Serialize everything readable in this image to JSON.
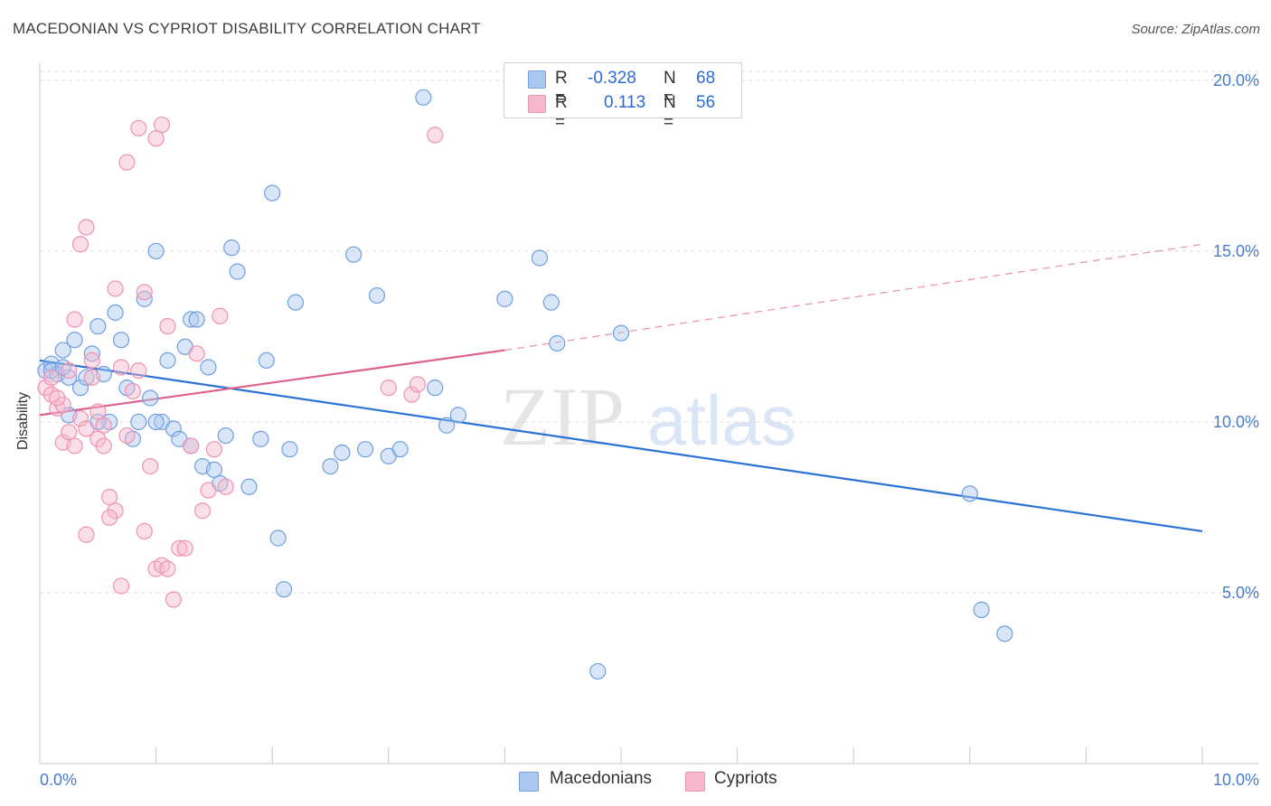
{
  "title": "MACEDONIAN VS CYPRIOT DISABILITY CORRELATION CHART",
  "source": "Source: ZipAtlas.com",
  "watermark": {
    "zip": "ZIP",
    "atlas": "atlas"
  },
  "colors": {
    "blue_fill": "#aac8f0",
    "blue_stroke": "#6f9fe0",
    "blue_line": "#2b72d6",
    "pink_fill": "#f7b8cc",
    "pink_stroke": "#ee92b0",
    "pink_line": "#e0608c",
    "grid": "#dcdcdc",
    "tick_text": "#4a7bc8"
  },
  "legend_top": {
    "rows": [
      {
        "r_label": "R =",
        "r_value": "-0.328",
        "n_label": "N =",
        "n_value": "68",
        "color": "#aac8f0"
      },
      {
        "r_label": "R =",
        "r_value": "0.113",
        "n_label": "N =",
        "n_value": "56",
        "color": "#f7b8cc"
      }
    ]
  },
  "legend_bottom": [
    {
      "label": "Macedonians",
      "color": "#aac8f0"
    },
    {
      "label": "Cypriots",
      "color": "#f7b8cc"
    }
  ],
  "chart_data": {
    "type": "scatter",
    "title": "MACEDONIAN VS CYPRIOT DISABILITY CORRELATION CHART",
    "xlabel": "",
    "ylabel": "Disability",
    "xlim": [
      0,
      10
    ],
    "ylim": [
      0,
      20.5
    ],
    "x_tick_labels": [
      "0.0%",
      "10.0%"
    ],
    "y_ticks": [
      5,
      10,
      15,
      20
    ],
    "y_tick_labels": [
      "5.0%",
      "10.0%",
      "15.0%",
      "20.0%"
    ],
    "grid": "horizontal dashed",
    "legend_position": "top-center and bottom",
    "series": [
      {
        "name": "Macedonians",
        "color": "#aac8f0",
        "r": -0.328,
        "n": 68,
        "trend": {
          "x": [
            0,
            10
          ],
          "y": [
            11.8,
            6.8
          ],
          "style": "solid"
        },
        "points": [
          [
            0.05,
            11.5
          ],
          [
            0.1,
            11.7
          ],
          [
            0.15,
            11.4
          ],
          [
            0.2,
            12.1
          ],
          [
            0.25,
            11.3
          ],
          [
            0.3,
            12.4
          ],
          [
            0.35,
            11.0
          ],
          [
            0.4,
            11.3
          ],
          [
            0.45,
            12.0
          ],
          [
            0.5,
            12.8
          ],
          [
            0.55,
            11.4
          ],
          [
            0.6,
            10.0
          ],
          [
            0.65,
            13.2
          ],
          [
            0.7,
            12.4
          ],
          [
            0.75,
            11.0
          ],
          [
            0.8,
            9.5
          ],
          [
            0.85,
            10.0
          ],
          [
            0.9,
            13.6
          ],
          [
            0.95,
            10.7
          ],
          [
            1.0,
            15.0
          ],
          [
            1.05,
            10.0
          ],
          [
            1.1,
            11.8
          ],
          [
            1.15,
            9.8
          ],
          [
            1.2,
            9.5
          ],
          [
            1.25,
            12.2
          ],
          [
            1.3,
            13.0
          ],
          [
            1.35,
            13.0
          ],
          [
            1.4,
            8.7
          ],
          [
            1.45,
            11.6
          ],
          [
            1.5,
            8.6
          ],
          [
            1.55,
            8.2
          ],
          [
            1.6,
            9.6
          ],
          [
            1.65,
            15.1
          ],
          [
            1.7,
            14.4
          ],
          [
            1.8,
            8.1
          ],
          [
            1.9,
            9.5
          ],
          [
            1.95,
            11.8
          ],
          [
            2.0,
            16.7
          ],
          [
            2.05,
            6.6
          ],
          [
            2.1,
            5.1
          ],
          [
            2.15,
            9.2
          ],
          [
            2.2,
            13.5
          ],
          [
            2.5,
            8.7
          ],
          [
            2.6,
            9.1
          ],
          [
            2.7,
            14.9
          ],
          [
            2.8,
            9.2
          ],
          [
            2.9,
            13.7
          ],
          [
            3.0,
            9.0
          ],
          [
            3.1,
            9.2
          ],
          [
            3.3,
            19.5
          ],
          [
            3.4,
            11.0
          ],
          [
            3.5,
            9.9
          ],
          [
            3.6,
            10.2
          ],
          [
            4.0,
            13.6
          ],
          [
            4.3,
            14.8
          ],
          [
            4.4,
            13.5
          ],
          [
            4.45,
            12.3
          ],
          [
            4.8,
            2.7
          ],
          [
            5.0,
            12.6
          ],
          [
            8.0,
            7.9
          ],
          [
            8.1,
            4.5
          ],
          [
            8.3,
            3.8
          ],
          [
            0.1,
            11.5
          ],
          [
            0.2,
            11.6
          ],
          [
            0.25,
            10.2
          ],
          [
            1.3,
            9.3
          ],
          [
            1.0,
            10.0
          ],
          [
            0.5,
            10.0
          ]
        ]
      },
      {
        "name": "Cypriots",
        "color": "#f7b8cc",
        "r": 0.113,
        "n": 56,
        "trend": {
          "x": [
            0,
            4.0
          ],
          "y": [
            10.2,
            12.1
          ],
          "dashed_to": [
            10,
            15.2
          ]
        },
        "points": [
          [
            0.05,
            11.0
          ],
          [
            0.1,
            10.8
          ],
          [
            0.15,
            10.4
          ],
          [
            0.2,
            9.4
          ],
          [
            0.25,
            11.5
          ],
          [
            0.3,
            9.3
          ],
          [
            0.35,
            10.1
          ],
          [
            0.4,
            9.8
          ],
          [
            0.45,
            11.8
          ],
          [
            0.5,
            9.5
          ],
          [
            0.55,
            9.9
          ],
          [
            0.6,
            7.8
          ],
          [
            0.65,
            7.4
          ],
          [
            0.7,
            5.2
          ],
          [
            0.75,
            17.6
          ],
          [
            0.8,
            10.9
          ],
          [
            0.85,
            18.6
          ],
          [
            0.9,
            6.8
          ],
          [
            0.95,
            8.7
          ],
          [
            1.0,
            5.7
          ],
          [
            1.05,
            18.7
          ],
          [
            1.1,
            12.8
          ],
          [
            1.15,
            4.8
          ],
          [
            1.2,
            6.3
          ],
          [
            1.25,
            6.3
          ],
          [
            1.3,
            9.3
          ],
          [
            1.35,
            12.0
          ],
          [
            1.4,
            7.4
          ],
          [
            1.45,
            8.0
          ],
          [
            1.5,
            9.2
          ],
          [
            1.55,
            13.1
          ],
          [
            1.6,
            8.1
          ],
          [
            0.3,
            13.0
          ],
          [
            0.35,
            15.2
          ],
          [
            0.4,
            15.7
          ],
          [
            0.45,
            11.3
          ],
          [
            0.5,
            10.3
          ],
          [
            0.55,
            9.3
          ],
          [
            0.6,
            7.2
          ],
          [
            0.65,
            13.9
          ],
          [
            0.7,
            11.6
          ],
          [
            0.75,
            9.6
          ],
          [
            0.85,
            11.5
          ],
          [
            0.9,
            13.8
          ],
          [
            1.0,
            18.3
          ],
          [
            1.05,
            5.8
          ],
          [
            1.1,
            5.7
          ],
          [
            3.0,
            11.0
          ],
          [
            3.2,
            10.8
          ],
          [
            3.25,
            11.1
          ],
          [
            3.4,
            18.4
          ],
          [
            0.2,
            10.5
          ],
          [
            0.15,
            10.7
          ],
          [
            0.25,
            9.7
          ],
          [
            0.1,
            11.3
          ],
          [
            0.4,
            6.7
          ]
        ]
      }
    ]
  }
}
